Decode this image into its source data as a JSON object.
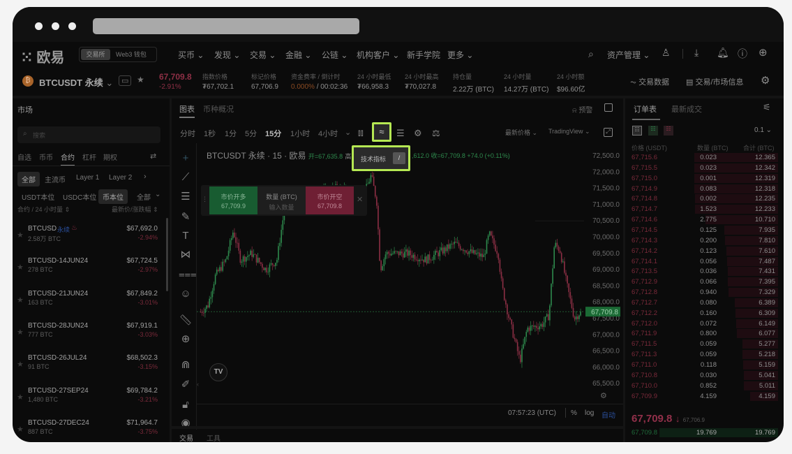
{
  "browser": {
    "dots": 3
  },
  "nav": {
    "logo": "欧易",
    "mode_tabs": [
      "交易所",
      "Web3 钱包"
    ],
    "menu": [
      "买币",
      "发现",
      "交易",
      "金融",
      "公链",
      "机构客户",
      "新手学院",
      "更多"
    ],
    "asset_mgmt": "资产管理"
  },
  "ticker": {
    "symbol": "BTCUSDT 永续",
    "last_price": "67,709.8",
    "change": "-2.91%",
    "stats": [
      {
        "label": "指数价格",
        "value": "₮67,702.1"
      },
      {
        "label": "标记价格",
        "value": "67,706.9"
      },
      {
        "label": "资金费率 / 倒计时",
        "value_rate": "0.000%",
        "value_timer": "/ 00:02:36"
      },
      {
        "label": "24 小时最低",
        "value": "₮66,958.3"
      },
      {
        "label": "24 小时最高",
        "value": "₮70,027.8"
      },
      {
        "label": "持仓量",
        "value": "2.22万 (BTC)"
      },
      {
        "label": "24 小时量",
        "value": "14.27万 (BTC)"
      },
      {
        "label": "24 小时额",
        "value": "$96.60亿"
      }
    ],
    "trade_data": "交易数据",
    "market_info": "交易/市场信息"
  },
  "market": {
    "title": "市场",
    "search_placeholder": "搜索",
    "tabs": [
      "自选",
      "币币",
      "合约",
      "杠杆",
      "期权"
    ],
    "active_tab": 2,
    "chips": [
      "全部",
      "主流币",
      "Layer 1",
      "Layer 2"
    ],
    "sub_chips": [
      "USDT本位",
      "USDC本位",
      "币本位",
      "全部"
    ],
    "col_left": "合约 / 24 小时量 ⇕",
    "col_right": "最新价/涨跌幅 ⇕",
    "items": [
      {
        "name": "BTCUSD",
        "badge": "永续",
        "vol": "2.58万 BTC",
        "price": "$67,692.0",
        "change": "-2.94%"
      },
      {
        "name": "BTCUSD-14JUN24",
        "vol": "278 BTC",
        "price": "$67,724.5",
        "change": "-2.97%"
      },
      {
        "name": "BTCUSD-21JUN24",
        "vol": "163 BTC",
        "price": "$67,849.2",
        "change": "-3.01%"
      },
      {
        "name": "BTCUSD-28JUN24",
        "vol": "777 BTC",
        "price": "$67,919.1",
        "change": "-3.03%"
      },
      {
        "name": "BTCUSD-26JUL24",
        "vol": "91 BTC",
        "price": "$68,502.3",
        "change": "-3.15%"
      },
      {
        "name": "BTCUSD-27SEP24",
        "vol": "1,480 BTC",
        "price": "$69,784.2",
        "change": "-3.21%"
      },
      {
        "name": "BTCUSD-27DEC24",
        "vol": "887 BTC",
        "price": "$71,964.7",
        "change": "-3.75%"
      }
    ]
  },
  "chart": {
    "tabs": [
      "图表",
      "币种概况"
    ],
    "alert": "预警",
    "intervals": [
      "分时",
      "1秒",
      "1分",
      "5分",
      "15分",
      "1小时",
      "4小时"
    ],
    "active_interval": "15分",
    "price_source": "最新价格",
    "engine": "TradingView",
    "legend": {
      "title": "BTCUSDT 永续 · 15 · 欧易",
      "open": "开=67,635.8",
      "high_label": "高",
      "low_tail": ",612.0",
      "close": "收=67,709.8",
      "delta": "+74.0 (+0.11%)"
    },
    "tooltip": {
      "label": "技术指标",
      "key": "/"
    },
    "quick_trade": {
      "buy_label": "市价开多",
      "buy_price": "67,709.9",
      "qty_label": "数量 (BTC)",
      "qty_placeholder": "输入数量",
      "sell_label": "市价开空",
      "sell_price": "67,709.8"
    },
    "clock": "07:57:23 (UTC)",
    "pct": "%",
    "log": "log",
    "auto": "自动",
    "bottom_tabs": [
      "交易",
      "工具"
    ]
  },
  "chart_data": {
    "type": "candlestick",
    "symbol": "BTCUSDT",
    "interval": "15分",
    "ylim": [
      65500,
      72500
    ],
    "y_ticks": [
      "72,500.0",
      "72,000.0",
      "71,500.0",
      "71,000.0",
      "70,500.0",
      "70,000.0",
      "69,500.0",
      "69,000.0",
      "68,500.0",
      "68,000.0",
      "67,500.0",
      "67,000.0",
      "66,500.0",
      "66,000.0",
      "65,500.0"
    ],
    "x_ticks": [
      "3",
      "5",
      "7",
      "9",
      "11",
      "13"
    ],
    "last_price_label": "67,709.8",
    "approx_path": [
      [
        2.8,
        67700
      ],
      [
        3.0,
        67900
      ],
      [
        3.2,
        68800
      ],
      [
        3.5,
        69300
      ],
      [
        3.7,
        70200
      ],
      [
        3.9,
        69300
      ],
      [
        4.2,
        69500
      ],
      [
        4.6,
        69000
      ],
      [
        4.9,
        69300
      ],
      [
        5.1,
        70800
      ],
      [
        5.3,
        71200
      ],
      [
        5.6,
        71000
      ],
      [
        6.0,
        71300
      ],
      [
        6.5,
        71500
      ],
      [
        7.0,
        71400
      ],
      [
        7.3,
        71300
      ],
      [
        7.5,
        71900
      ],
      [
        7.65,
        71100
      ],
      [
        7.75,
        69000
      ],
      [
        7.9,
        69500
      ],
      [
        8.5,
        69500
      ],
      [
        9.0,
        69300
      ],
      [
        9.5,
        69600
      ],
      [
        9.8,
        69800
      ],
      [
        10.3,
        69500
      ],
      [
        10.6,
        69400
      ],
      [
        10.75,
        70100
      ],
      [
        11.0,
        69500
      ],
      [
        11.1,
        68500
      ],
      [
        11.3,
        67500
      ],
      [
        11.6,
        66200
      ],
      [
        11.8,
        67200
      ],
      [
        12.2,
        67300
      ],
      [
        12.4,
        67600
      ],
      [
        12.55,
        69800
      ],
      [
        12.7,
        69600
      ],
      [
        12.9,
        68500
      ],
      [
        13.1,
        67500
      ],
      [
        13.27,
        67709.8
      ]
    ],
    "colors": {
      "up": "#2e8a4d",
      "down": "#8d2f45"
    }
  },
  "orderbook": {
    "tabs": [
      "订单表",
      "最新成交"
    ],
    "precision": "0.1",
    "headers": [
      "价格 (USDT)",
      "数量 (BTC)",
      "合计 (BTC)"
    ],
    "asks": [
      [
        "67,715.6",
        "0.023",
        "12.365"
      ],
      [
        "67,715.5",
        "0.023",
        "12.342"
      ],
      [
        "67,715.0",
        "0.001",
        "12.319"
      ],
      [
        "67,714.9",
        "0.083",
        "12.318"
      ],
      [
        "67,714.8",
        "0.002",
        "12.235"
      ],
      [
        "67,714.7",
        "1.523",
        "12.233"
      ],
      [
        "67,714.6",
        "2.775",
        "10.710"
      ],
      [
        "67,714.5",
        "0.125",
        "7.935"
      ],
      [
        "67,714.3",
        "0.200",
        "7.810"
      ],
      [
        "67,714.2",
        "0.123",
        "7.610"
      ],
      [
        "67,714.1",
        "0.056",
        "7.487"
      ],
      [
        "67,713.5",
        "0.036",
        "7.431"
      ],
      [
        "67,712.9",
        "0.066",
        "7.395"
      ],
      [
        "67,712.8",
        "0.940",
        "7.329"
      ],
      [
        "67,712.7",
        "0.080",
        "6.389"
      ],
      [
        "67,712.2",
        "0.160",
        "6.309"
      ],
      [
        "67,712.0",
        "0.072",
        "6.149"
      ],
      [
        "67,711.9",
        "0.800",
        "6.077"
      ],
      [
        "67,711.5",
        "0.059",
        "5.277"
      ],
      [
        "67,711.3",
        "0.059",
        "5.218"
      ],
      [
        "67,711.0",
        "0.118",
        "5.159"
      ],
      [
        "67,710.8",
        "0.030",
        "5.041"
      ],
      [
        "67,710.0",
        "0.852",
        "5.011"
      ],
      [
        "67,709.9",
        "4.159",
        "4.159"
      ]
    ],
    "mid_price": "67,709.8",
    "mid_arrow": "↓",
    "mark_price": "67,706.9",
    "bids": [
      [
        "67,709.8",
        "19.769",
        "19.769"
      ]
    ]
  },
  "colors": {
    "highlight": "#b5e853",
    "up": "#2e8a4d",
    "down": "#8d2f45"
  }
}
